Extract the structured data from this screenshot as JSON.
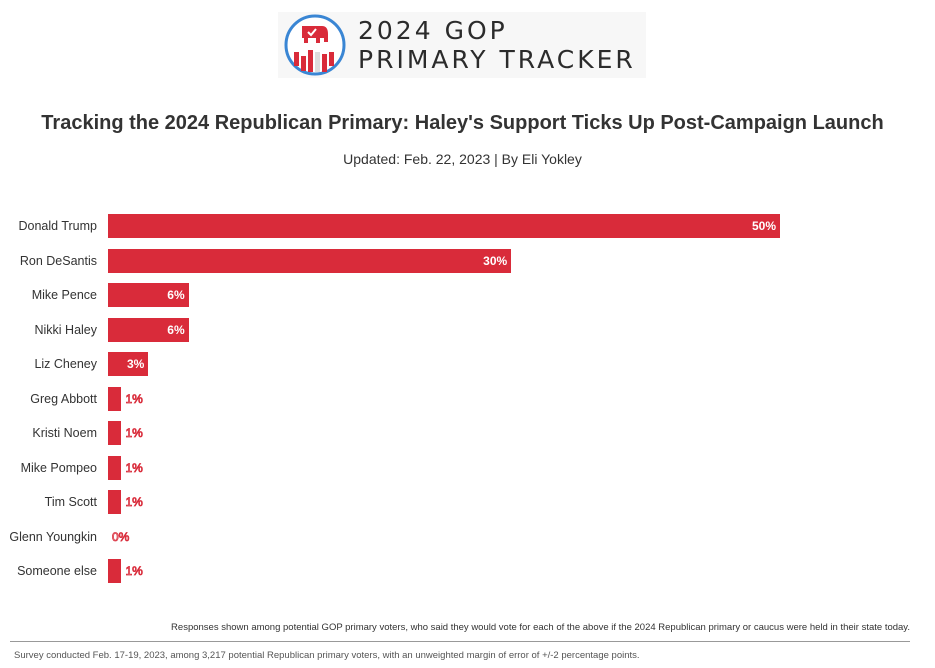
{
  "header": {
    "logo_line1": "2024 GOP",
    "logo_line2": "PRIMARY TRACKER"
  },
  "chart_data": {
    "type": "bar",
    "orientation": "horizontal",
    "title": "Tracking the 2024 Republican Primary: Haley's Support Ticks Up Post-Campaign Launch",
    "subtitle": "Updated: Feb. 22, 2023 | By Eli Yokley",
    "categories": [
      "Donald Trump",
      "Ron DeSantis",
      "Mike Pence",
      "Nikki Haley",
      "Liz Cheney",
      "Greg Abbott",
      "Kristi Noem",
      "Mike Pompeo",
      "Tim Scott",
      "Glenn Youngkin",
      "Someone else"
    ],
    "values": [
      50,
      30,
      6,
      6,
      3,
      1,
      1,
      1,
      1,
      0,
      1
    ],
    "labels": [
      "50%",
      "30%",
      "6%",
      "6%",
      "3%",
      "1%",
      "1%",
      "1%",
      "1%",
      "0%",
      "1%"
    ],
    "xlim": [
      0,
      50
    ],
    "color": "#d92b3a",
    "grid": false
  },
  "notes": {
    "responses": "Responses shown among potential GOP primary voters, who said they would vote for each of the above if the 2024 Republican primary or caucus were held in their state today.",
    "survey": "Survey conducted Feb. 17-19, 2023, among 3,217 potential Republican primary voters, with an unweighted margin of error of +/-2 percentage points."
  }
}
